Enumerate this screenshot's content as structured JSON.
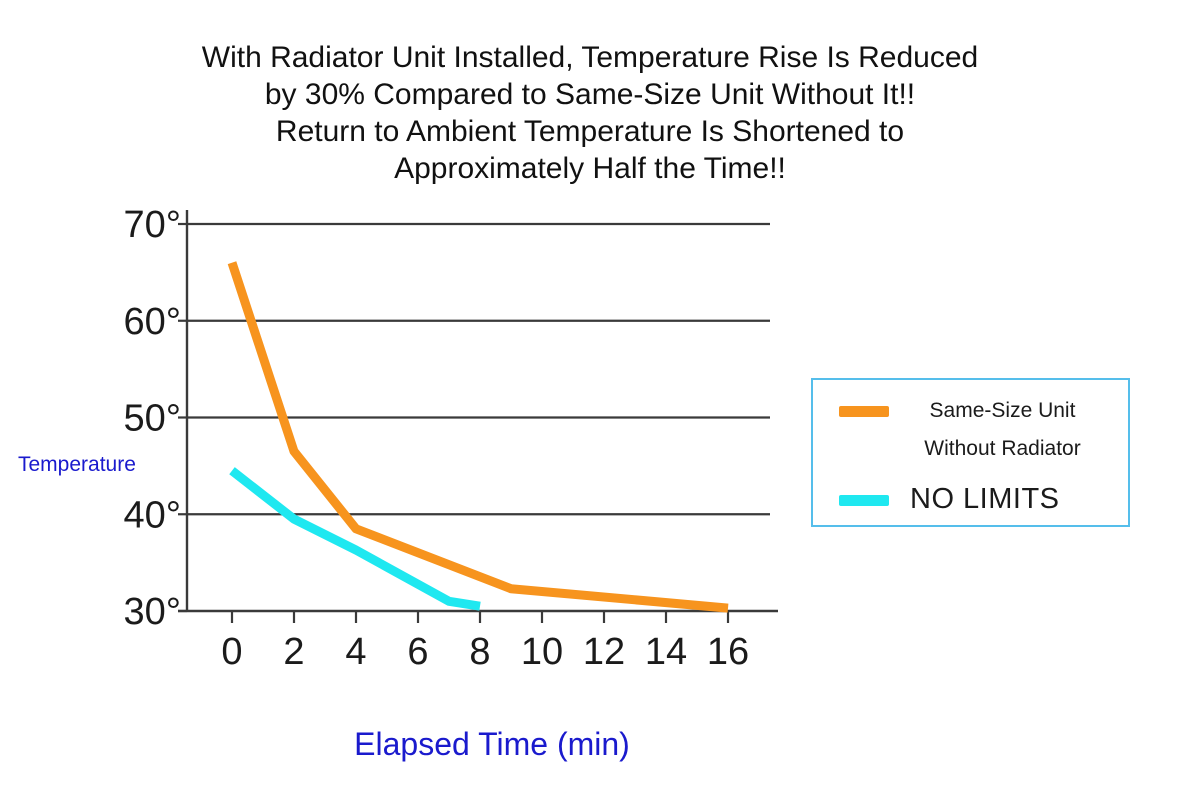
{
  "chart_data": {
    "type": "line",
    "title": "With Radiator Unit Installed, Temperature Rise Is Reduced\nby 30% Compared to Same-Size Unit Without It!!\nReturn to Ambient Temperature Is Shortened to\nApproximately Half the Time!!",
    "xlabel": "Elapsed Time (min)",
    "ylabel": "Temperature",
    "xlim": [
      0,
      16
    ],
    "ylim": [
      30,
      70
    ],
    "grid": "horizontal gridlines at each 10-degree tick",
    "legend_position": "right",
    "x_ticks": [
      {
        "value": 0,
        "label": "0"
      },
      {
        "value": 2,
        "label": "2"
      },
      {
        "value": 4,
        "label": "4"
      },
      {
        "value": 6,
        "label": "6"
      },
      {
        "value": 8,
        "label": "8"
      },
      {
        "value": 10,
        "label": "10"
      },
      {
        "value": 12,
        "label": "12"
      },
      {
        "value": 14,
        "label": "14"
      },
      {
        "value": 16,
        "label": "16"
      }
    ],
    "y_ticks": [
      {
        "value": 70,
        "label": "70°"
      },
      {
        "value": 60,
        "label": "60°"
      },
      {
        "value": 50,
        "label": "50°"
      },
      {
        "value": 40,
        "label": "40°"
      },
      {
        "value": 30,
        "label": "30°"
      }
    ],
    "series": [
      {
        "name": "Same-Size Unit Without Radiator",
        "color": "#F7941E",
        "points": [
          [
            0,
            66
          ],
          [
            2,
            46.5
          ],
          [
            4,
            38.5
          ],
          [
            9,
            32.3
          ],
          [
            16,
            30.3
          ]
        ]
      },
      {
        "name": "NO LIMITS",
        "color": "#1FE8F0",
        "points": [
          [
            0,
            44.5
          ],
          [
            2,
            39.5
          ],
          [
            4,
            36.3
          ],
          [
            7,
            31
          ],
          [
            8,
            30.5
          ]
        ]
      }
    ]
  },
  "legend": {
    "border_color": "#55BEEB",
    "items": [
      {
        "label": "Same-Size Unit\nWithout Radiator",
        "color": "#F7941E"
      },
      {
        "label": "NO LIMITS",
        "color": "#1FE8F0"
      }
    ]
  },
  "colors": {
    "axis": "#3a3a3a",
    "blue_label": "#1A1ACD",
    "title": "#111111"
  }
}
